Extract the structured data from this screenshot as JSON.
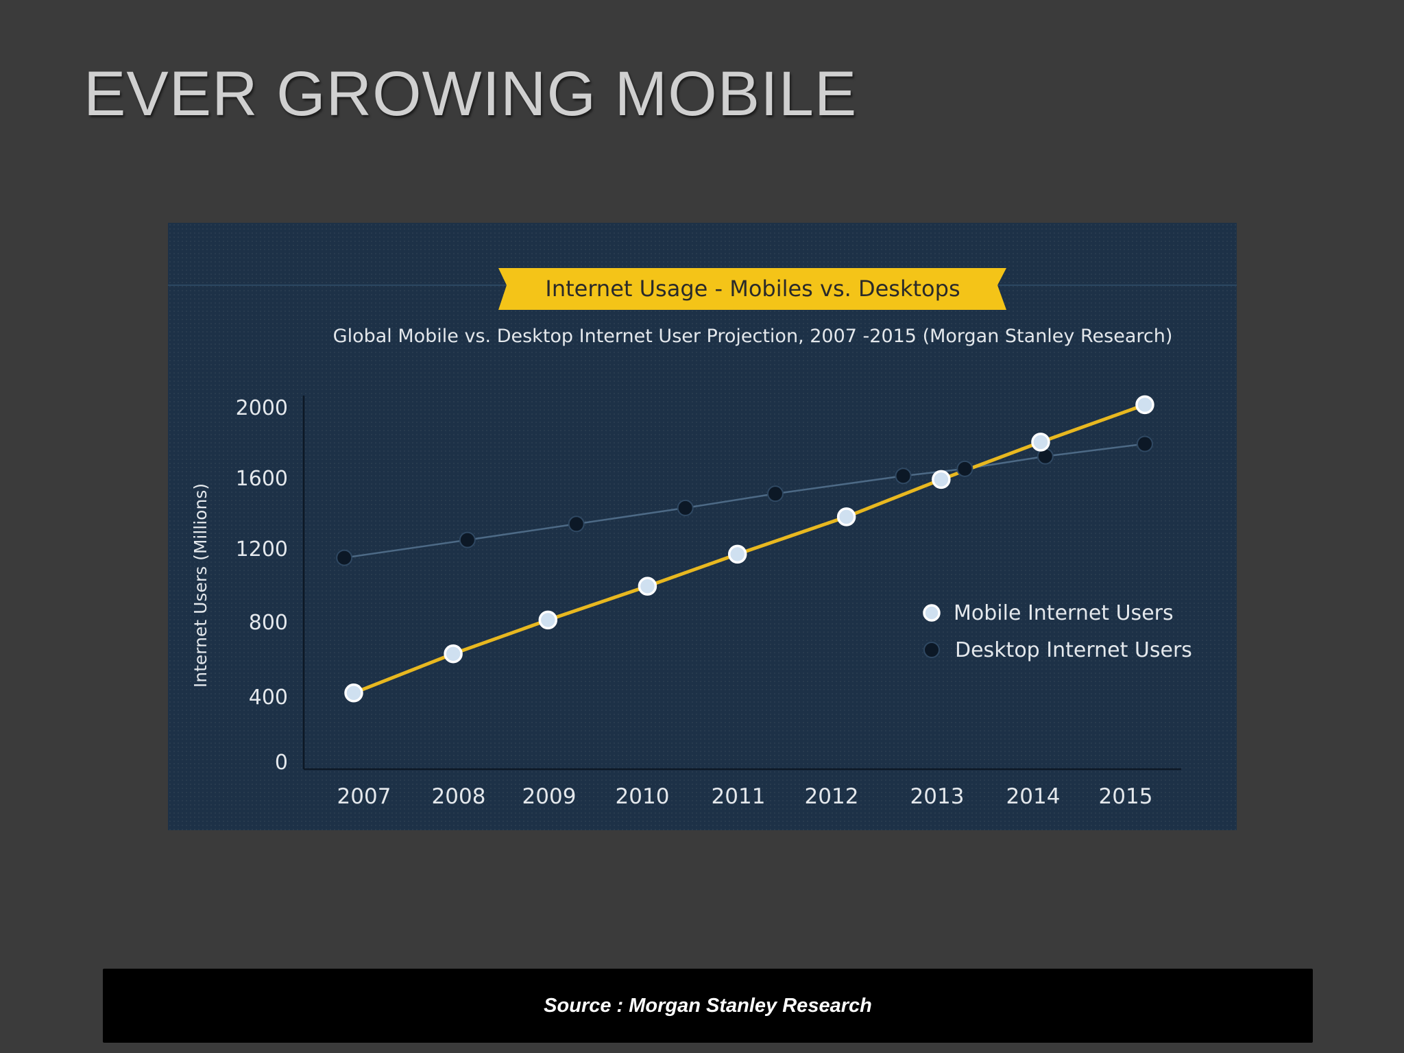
{
  "slide": {
    "title": "EVER GROWING MOBILE",
    "source_caption": "Source : Morgan Stanley Research"
  },
  "colors": {
    "background": "#3b3b3b",
    "chart_panel": "#1d3147",
    "banner": "#f4c418",
    "mobile_line": "#e8b820",
    "mobile_marker": "#cfe0f0",
    "desktop_line": "#4d6a86",
    "desktop_marker": "#0c1826"
  },
  "chart_data": {
    "type": "line",
    "title": "Internet Usage - Mobiles vs. Desktops",
    "subtitle": "Global Mobile vs. Desktop Internet User Projection, 2007 -2015  (Morgan Stanley Research)",
    "ylabel": "Internet Users (Millions)",
    "xlabel": "",
    "x_ticks": [
      "2007",
      "2008",
      "2009",
      "2010",
      "2011",
      "2012",
      "2013",
      "2014",
      "2015"
    ],
    "y_ticks": [
      "0",
      "400",
      "800",
      "1200",
      "1600",
      "2000"
    ],
    "ylim": [
      0,
      2100
    ],
    "grid": false,
    "legend_position": "right-center",
    "series": [
      {
        "name": "Mobile Internet Users",
        "x": [
          2007.0,
          2008.05,
          2009.05,
          2010.1,
          2011.05,
          2012.2,
          2013.2,
          2014.25,
          2015.35
        ],
        "values": [
          390,
          610,
          800,
          990,
          1170,
          1380,
          1590,
          1800,
          2010
        ]
      },
      {
        "name": "Desktop Internet Users",
        "x": [
          2006.9,
          2008.2,
          2009.35,
          2010.5,
          2011.45,
          2012.8,
          2013.45,
          2014.3,
          2015.35
        ],
        "values": [
          1150,
          1250,
          1340,
          1430,
          1510,
          1610,
          1650,
          1720,
          1790
        ]
      }
    ]
  }
}
